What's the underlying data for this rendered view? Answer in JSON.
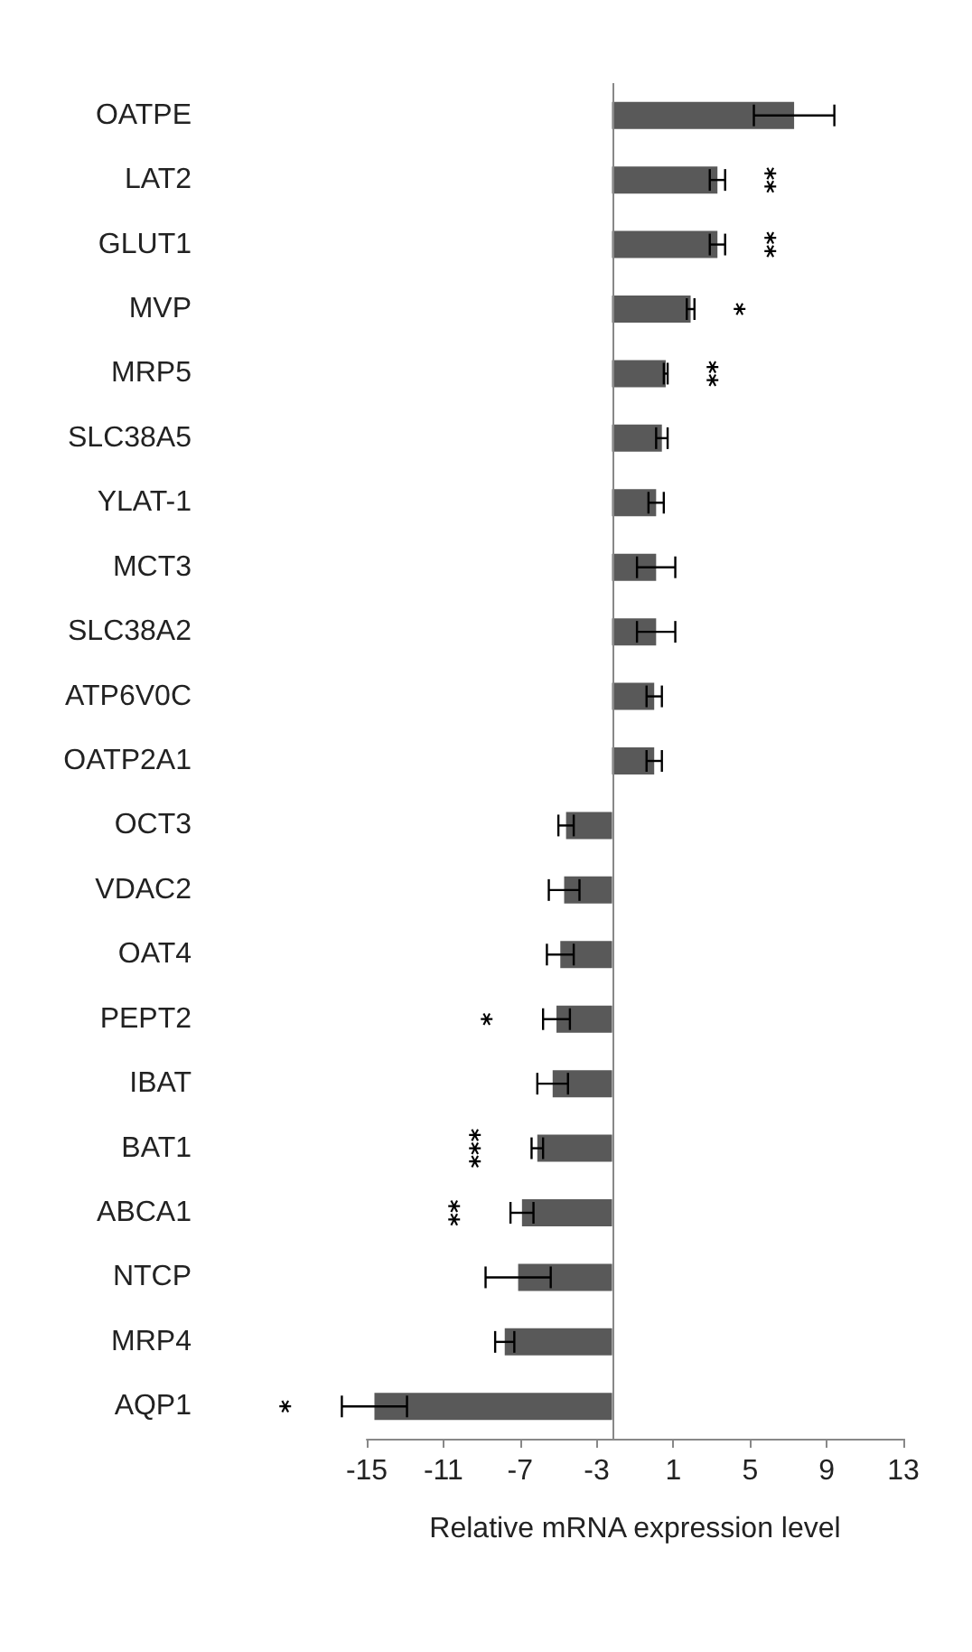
{
  "chart_data": {
    "type": "bar",
    "orientation": "horizontal",
    "xlabel": "Relative mRNA expression level",
    "categories": [
      "OATPE",
      "LAT2",
      "GLUT1",
      "MVP",
      "MRP5",
      "SLC38A5",
      "YLAT-1",
      "MCT3",
      "SLC38A2",
      "ATP6V0C",
      "OATP2A1",
      "OCT3",
      "VDAC2",
      "OAT4",
      "PEPT2",
      "IBAT",
      "BAT1",
      "ABCA1",
      "NTCP",
      "MRP4",
      "AQP1"
    ],
    "values": [
      9.5,
      5.5,
      5.5,
      4.1,
      2.8,
      2.6,
      2.3,
      2.3,
      2.3,
      2.2,
      2.2,
      -2.4,
      -2.5,
      -2.7,
      -2.9,
      -3.1,
      -3.9,
      -4.7,
      -4.9,
      -5.6,
      -12.4
    ],
    "base": [
      -2.2,
      -2.2,
      -2.2,
      -2.2,
      -2.2,
      -2.2,
      -2.2,
      -2.2,
      -2.2,
      -2.2,
      -2.2,
      -2.2,
      -2.2,
      -2.2,
      -2.2,
      -2.2,
      -2.2,
      -2.2,
      -2.2,
      -2.2,
      -2.2
    ],
    "errors": [
      2.1,
      0.4,
      0.4,
      0.2,
      0.1,
      0.3,
      0.4,
      1.0,
      1.0,
      0.4,
      0.4,
      0.4,
      0.8,
      0.7,
      0.7,
      0.8,
      0.3,
      0.6,
      1.7,
      0.5,
      1.7
    ],
    "color": "#595959",
    "ref_lines": [
      {
        "axis": "x",
        "value": -2.2,
        "color": "#888888"
      }
    ],
    "xlim": [
      -15,
      13
    ],
    "xticks": [
      -15,
      -11,
      -7,
      -3,
      1,
      5,
      9,
      13
    ],
    "grid": false,
    "value_labels": [
      null,
      "**",
      "**",
      "*",
      "**",
      null,
      null,
      null,
      null,
      null,
      null,
      null,
      null,
      null,
      "*",
      null,
      "***",
      "**",
      null,
      null,
      "*"
    ]
  }
}
